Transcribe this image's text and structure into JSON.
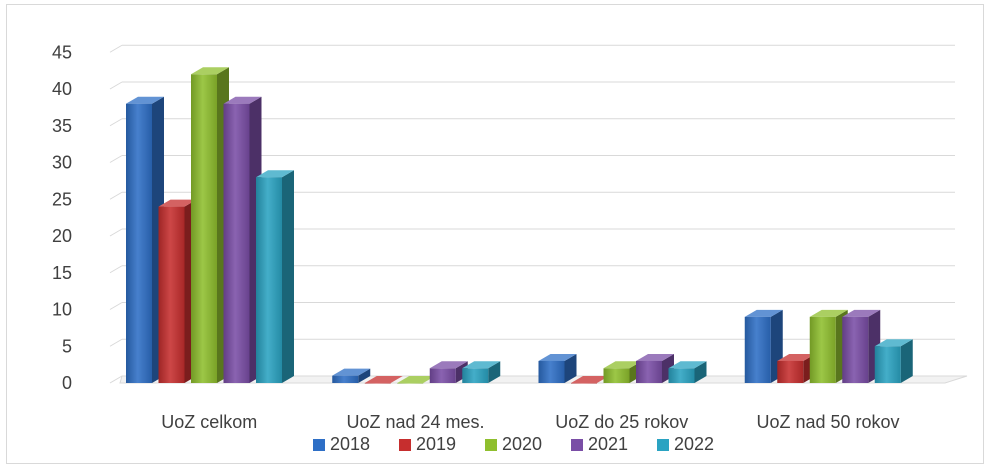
{
  "chart_data": {
    "type": "bar",
    "title": "",
    "xlabel": "",
    "ylabel": "",
    "categories": [
      "UoZ celkom",
      "UoZ nad 24 mes.",
      "UoZ do 25 rokov",
      "UoZ nad 50 rokov"
    ],
    "series": [
      {
        "name": "2018",
        "color": "#2e6fc6",
        "values": [
          38,
          1,
          3,
          9
        ]
      },
      {
        "name": "2019",
        "color": "#c62e2e",
        "values": [
          24,
          0,
          0,
          3
        ]
      },
      {
        "name": "2020",
        "color": "#8fbf2e",
        "values": [
          42,
          0,
          2,
          9
        ]
      },
      {
        "name": "2021",
        "color": "#7a4ea6",
        "values": [
          38,
          2,
          3,
          9
        ]
      },
      {
        "name": "2022",
        "color": "#2aa3c2",
        "values": [
          28,
          2,
          2,
          5
        ]
      }
    ],
    "yticks": [
      "0",
      "5",
      "10",
      "15",
      "20",
      "25",
      "30",
      "35",
      "40",
      "45"
    ],
    "ylim": [
      0,
      45
    ],
    "grid": true,
    "legend_position": "bottom",
    "style": "3d-clustered-column"
  }
}
